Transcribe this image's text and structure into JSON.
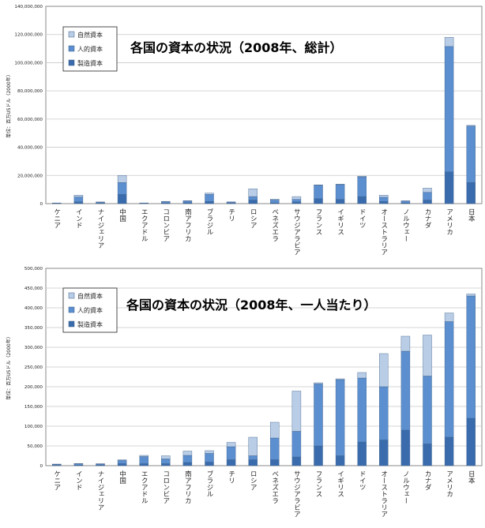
{
  "legend": {
    "natural": "自然資本",
    "human": "人的資本",
    "manufactured": "製造資本"
  },
  "colors": {
    "natural": "#b9cde6",
    "human": "#5b8fd0",
    "manufactured": "#3a6cad",
    "plot_bg": "#ffffff",
    "grid": "#c8c8c8"
  },
  "chart_data": [
    {
      "type": "bar",
      "stacked": true,
      "title": "各国の資本の状況（2008年、総計）",
      "ylabel": "単位：百万USドル（2000年）",
      "ylim": [
        0,
        140000000
      ],
      "y_ticks": [
        "0",
        "20,000,000",
        "40,000,000",
        "60,000,000",
        "80,000,000",
        "100,000,000",
        "120,000,000",
        "140,000,000"
      ],
      "grid": true,
      "legend_position": "top-left",
      "categories": [
        "ケニア",
        "インド",
        "ナイジェリア",
        "中国",
        "エクアドル",
        "コロンビア",
        "南アフリカ",
        "ブラジル",
        "チリ",
        "ロシア",
        "ベネズエラ",
        "サウジアラビア",
        "フランス",
        "イギリス",
        "ドイツ",
        "オーストラリア",
        "ノルウェー",
        "カナダ",
        "アメリカ",
        "日本"
      ],
      "series": [
        {
          "name": "製造資本",
          "values": [
            100000,
            1200000,
            300000,
            6500000,
            100000,
            400000,
            600000,
            1500000,
            300000,
            2500000,
            500000,
            1200000,
            3500000,
            3000000,
            5000000,
            1500000,
            500000,
            2500000,
            22500000,
            15000000
          ]
        },
        {
          "name": "人的資本",
          "values": [
            300000,
            3500000,
            600000,
            8500000,
            300000,
            900000,
            1200000,
            5000000,
            700000,
            2500000,
            2000000,
            1800000,
            9500000,
            10500000,
            14000000,
            3000000,
            1300000,
            5500000,
            89000000,
            40000000
          ]
        },
        {
          "name": "自然資本",
          "values": [
            100000,
            1300000,
            300000,
            5000000,
            100000,
            300000,
            300000,
            1000000,
            300000,
            5500000,
            700000,
            2000000,
            300000,
            300000,
            500000,
            1500000,
            200000,
            3000000,
            6500000,
            500000
          ]
        }
      ]
    },
    {
      "type": "bar",
      "stacked": true,
      "title": "各国の資本の状況（2008年、一人当たり）",
      "ylabel": "単位：百万USドル（2000年）",
      "ylim": [
        0,
        500000
      ],
      "y_ticks": [
        "0",
        "50,000",
        "100,000",
        "150,000",
        "200,000",
        "250,000",
        "300,000",
        "350,000",
        "400,000",
        "450,000",
        "500,000"
      ],
      "grid": true,
      "legend_position": "top-left",
      "categories": [
        "ケニア",
        "インド",
        "ナイジェリア",
        "中国",
        "エクアドル",
        "コロンビア",
        "南アフリカ",
        "ブラジル",
        "チリ",
        "ロシア",
        "ベネズエラ",
        "サウジアラビア",
        "フランス",
        "イギリス",
        "ドイツ",
        "オーストラリア",
        "ノルウェー",
        "カナダ",
        "アメリカ",
        "日本"
      ],
      "series": [
        {
          "name": "製造資本",
          "values": [
            1000,
            1500,
            1500,
            5000,
            5000,
            5000,
            8000,
            9000,
            15000,
            15000,
            15000,
            22000,
            50000,
            25000,
            60000,
            65000,
            90000,
            55000,
            72000,
            120000
          ]
        },
        {
          "name": "人的資本",
          "values": [
            2000,
            3000,
            2500,
            8000,
            18000,
            12000,
            18000,
            22000,
            33000,
            10000,
            55000,
            65000,
            157000,
            193000,
            162000,
            135000,
            200000,
            172000,
            293000,
            310000
          ]
        },
        {
          "name": "自然資本",
          "values": [
            1000,
            1000,
            1000,
            2000,
            3000,
            8000,
            11000,
            7000,
            11000,
            47000,
            40000,
            102000,
            3000,
            2000,
            14000,
            84000,
            38000,
            104000,
            22000,
            5000
          ]
        }
      ]
    }
  ]
}
